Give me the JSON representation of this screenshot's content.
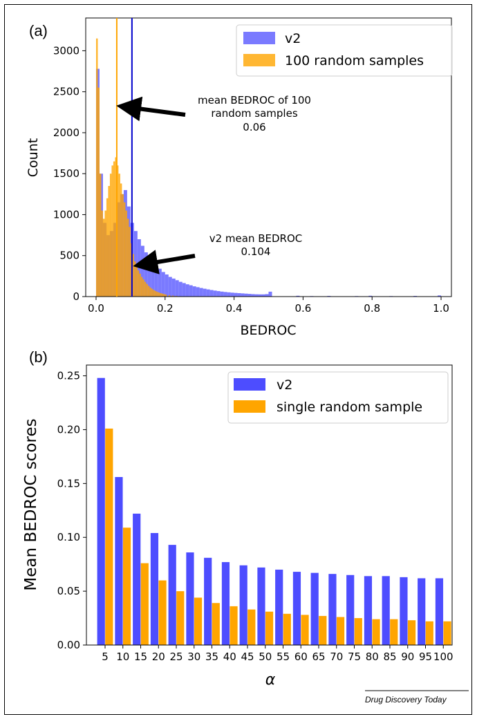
{
  "chart_data": [
    {
      "type": "histogram",
      "panel_label": "(a)",
      "xlabel": "BEDROC",
      "ylabel": "Count",
      "xlim": [
        -0.03,
        1.03
      ],
      "ylim": [
        0,
        3400
      ],
      "xticks": [
        "0.0",
        "0.2",
        "0.4",
        "0.6",
        "0.8",
        "1.0"
      ],
      "yticks": [
        "0",
        "500",
        "1000",
        "1500",
        "2000",
        "2500",
        "3000"
      ],
      "legend": {
        "position": "top-right",
        "entries": [
          "v2",
          "100 random samples"
        ]
      },
      "series": [
        {
          "name": "v2",
          "color": "#4d4dff",
          "bin_width": 0.01,
          "x": [
            0.0,
            0.01,
            0.02,
            0.03,
            0.04,
            0.05,
            0.06,
            0.07,
            0.08,
            0.09,
            0.1,
            0.11,
            0.12,
            0.13,
            0.14,
            0.15,
            0.16,
            0.17,
            0.18,
            0.19,
            0.2,
            0.21,
            0.22,
            0.23,
            0.24,
            0.25,
            0.26,
            0.27,
            0.28,
            0.29,
            0.3,
            0.31,
            0.32,
            0.33,
            0.34,
            0.35,
            0.36,
            0.37,
            0.38,
            0.39,
            0.4,
            0.41,
            0.42,
            0.43,
            0.44,
            0.45,
            0.46,
            0.47,
            0.48,
            0.49,
            0.5
          ],
          "values": [
            2780,
            1500,
            900,
            750,
            800,
            900,
            1150,
            1250,
            1300,
            1100,
            900,
            800,
            700,
            620,
            540,
            480,
            420,
            380,
            340,
            300,
            270,
            240,
            220,
            200,
            180,
            165,
            150,
            138,
            125,
            115,
            105,
            96,
            88,
            80,
            73,
            67,
            61,
            56,
            52,
            48,
            45,
            42,
            39,
            36,
            33,
            30,
            28,
            27,
            27,
            30,
            60
          ]
        },
        {
          "name": "100 random samples",
          "color": "#ffa500",
          "bin_width": 0.005,
          "x": [
            0.0,
            0.005,
            0.01,
            0.015,
            0.02,
            0.025,
            0.03,
            0.035,
            0.04,
            0.045,
            0.05,
            0.055,
            0.06,
            0.065,
            0.07,
            0.075,
            0.08,
            0.085,
            0.09,
            0.095,
            0.1,
            0.105,
            0.11,
            0.115,
            0.12,
            0.125,
            0.13,
            0.135,
            0.14,
            0.145,
            0.15,
            0.155,
            0.16,
            0.165,
            0.17,
            0.175,
            0.18,
            0.185,
            0.19,
            0.195,
            0.2,
            0.21,
            0.22,
            0.23,
            0.24,
            0.25
          ],
          "values": [
            3150,
            2550,
            1500,
            1050,
            950,
            1050,
            1200,
            1350,
            1500,
            1600,
            1650,
            1700,
            1600,
            1500,
            1380,
            1250,
            1150,
            1050,
            950,
            850,
            650,
            520,
            430,
            370,
            320,
            280,
            240,
            210,
            180,
            155,
            130,
            110,
            95,
            80,
            68,
            58,
            50,
            42,
            36,
            30,
            25,
            18,
            12,
            8,
            5,
            3
          ]
        }
      ],
      "vlines": [
        {
          "x": 0.06,
          "color": "#ffa500"
        },
        {
          "x": 0.104,
          "color": "#0000cc"
        }
      ],
      "annotations": [
        {
          "lines": [
            "mean BEDROC of 100",
            "random samples",
            "0.06"
          ]
        },
        {
          "lines": [
            "v2 mean BEDROC",
            "0.104"
          ]
        }
      ]
    },
    {
      "type": "bar",
      "panel_label": "(b)",
      "xlabel": "α",
      "ylabel": "Mean BEDROC scores",
      "ylim": [
        0,
        0.26
      ],
      "yticks": [
        "0.00",
        "0.05",
        "0.10",
        "0.15",
        "0.20",
        "0.25"
      ],
      "categories": [
        "5",
        "10",
        "15",
        "20",
        "25",
        "30",
        "35",
        "40",
        "45",
        "50",
        "55",
        "60",
        "65",
        "70",
        "75",
        "80",
        "85",
        "90",
        "95",
        "100"
      ],
      "legend": {
        "position": "top-right"
      },
      "series": [
        {
          "name": "v2",
          "color": "#4d4dff",
          "values": [
            0.248,
            0.156,
            0.122,
            0.104,
            0.093,
            0.086,
            0.081,
            0.077,
            0.074,
            0.072,
            0.07,
            0.068,
            0.067,
            0.066,
            0.065,
            0.064,
            0.064,
            0.063,
            0.062,
            0.062
          ]
        },
        {
          "name": "single random sample",
          "color": "#ffa500",
          "values": [
            0.201,
            0.109,
            0.076,
            0.06,
            0.05,
            0.044,
            0.039,
            0.036,
            0.033,
            0.031,
            0.029,
            0.028,
            0.027,
            0.026,
            0.025,
            0.024,
            0.024,
            0.023,
            0.022,
            0.022
          ]
        }
      ]
    }
  ],
  "credit": "Drug Discovery Today"
}
